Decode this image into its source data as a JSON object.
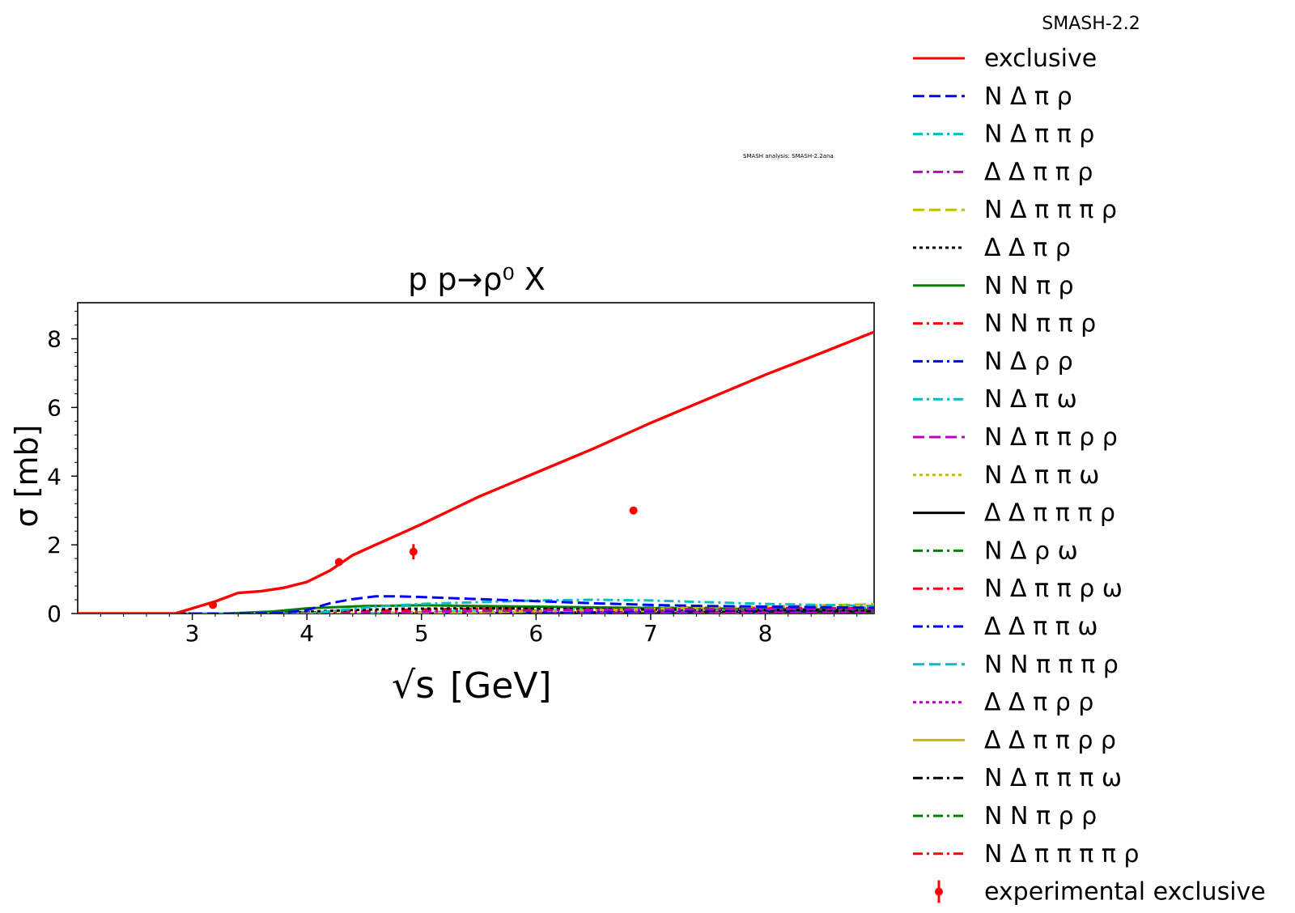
{
  "chart_data": {
    "type": "line",
    "title": "p p→ρ⁰ X",
    "xlabel": "[GeV]",
    "xlabel_symbol": "√s",
    "ylabel": "σ [mb]",
    "xlim": [
      2.0,
      8.95
    ],
    "ylim": [
      0,
      9.05
    ],
    "x_ticks": [
      3,
      4,
      5,
      6,
      7,
      8
    ],
    "y_ticks": [
      0,
      2,
      4,
      6,
      8
    ],
    "watermark": "SMASH analysis: SMASH-2.2ana",
    "legend_title": "SMASH-2.2",
    "legend_placement": "outside-right",
    "series": [
      {
        "name": "exclusive",
        "color": "#ff0000",
        "dash": "solid",
        "x": [
          2.0,
          2.85,
          3.0,
          3.2,
          3.4,
          3.6,
          3.8,
          4.0,
          4.2,
          4.4,
          4.6,
          4.8,
          5.0,
          5.5,
          6.0,
          6.5,
          7.0,
          7.5,
          8.0,
          8.5,
          8.95
        ],
        "y": [
          0,
          0,
          0.15,
          0.35,
          0.6,
          0.65,
          0.75,
          0.92,
          1.25,
          1.7,
          2.0,
          2.3,
          2.6,
          3.4,
          4.1,
          4.8,
          5.55,
          6.25,
          6.95,
          7.6,
          8.2
        ]
      },
      {
        "name": "N Δ π ρ",
        "color": "#0000ff",
        "dash": "longdash",
        "x": [
          2.0,
          3.5,
          3.8,
          4.0,
          4.2,
          4.4,
          4.6,
          4.8,
          5.0,
          5.5,
          6.0,
          6.5,
          7.0,
          7.5,
          8.0,
          8.95
        ],
        "y": [
          0,
          0,
          0.02,
          0.1,
          0.3,
          0.42,
          0.5,
          0.5,
          0.48,
          0.42,
          0.36,
          0.3,
          0.25,
          0.22,
          0.2,
          0.17
        ]
      },
      {
        "name": "N Δ π π ρ",
        "color": "#00bfbf",
        "dash": "dashdot",
        "x": [
          2.0,
          4.0,
          4.3,
          4.6,
          5.0,
          5.5,
          6.0,
          6.5,
          7.0,
          7.5,
          8.0,
          8.95
        ],
        "y": [
          0,
          0,
          0.1,
          0.2,
          0.28,
          0.33,
          0.38,
          0.4,
          0.38,
          0.33,
          0.28,
          0.22
        ]
      },
      {
        "name": "Δ Δ π π ρ",
        "color": "#bf00bf",
        "dash": "dashdot",
        "x": [
          2.0,
          4.3,
          5.0,
          6.0,
          7.0,
          8.0,
          8.95
        ],
        "y": [
          0,
          0,
          0.05,
          0.09,
          0.12,
          0.13,
          0.14
        ]
      },
      {
        "name": "N Δ π π π ρ",
        "color": "#bfbf00",
        "dash": "longdash",
        "x": [
          2.0,
          4.6,
          5.5,
          6.5,
          7.5,
          8.5,
          8.95
        ],
        "y": [
          0,
          0,
          0.04,
          0.1,
          0.17,
          0.24,
          0.27
        ]
      },
      {
        "name": "Δ Δ π ρ",
        "color": "#000000",
        "dash": "dotted",
        "x": [
          2.0,
          3.7,
          4.2,
          4.8,
          5.5,
          6.5,
          7.5,
          8.95
        ],
        "y": [
          0,
          0,
          0.08,
          0.14,
          0.15,
          0.13,
          0.11,
          0.09
        ]
      },
      {
        "name": "N N π ρ",
        "color": "#008000",
        "dash": "solid",
        "x": [
          2.0,
          3.3,
          3.7,
          4.0,
          4.5,
          5.0,
          5.5,
          6.0,
          7.0,
          8.0,
          8.95
        ],
        "y": [
          0,
          0,
          0.06,
          0.15,
          0.22,
          0.24,
          0.22,
          0.2,
          0.16,
          0.13,
          0.11
        ]
      },
      {
        "name": "N N π π ρ",
        "color": "#ff0000",
        "dash": "dashdot",
        "x": [
          2.0,
          3.6,
          4.2,
          5.0,
          6.0,
          7.0,
          8.0,
          8.95
        ],
        "y": [
          0,
          0,
          0.05,
          0.12,
          0.16,
          0.17,
          0.16,
          0.15
        ]
      },
      {
        "name": "N Δ ρ ρ",
        "color": "#0000ff",
        "dash": "dashdot",
        "x": [
          2.0,
          4.5,
          5.5,
          6.5,
          7.5,
          8.95
        ],
        "y": [
          0,
          0,
          0.03,
          0.06,
          0.08,
          0.1
        ]
      },
      {
        "name": "N Δ π ω",
        "color": "#00bfbf",
        "dash": "dashdot",
        "x": [
          2.0,
          4.2,
          5.0,
          6.0,
          7.0,
          8.0,
          8.95
        ],
        "y": [
          0,
          0,
          0.06,
          0.1,
          0.12,
          0.12,
          0.12
        ]
      },
      {
        "name": "N Δ π π ρ ρ",
        "color": "#bf00bf",
        "dash": "longdash",
        "x": [
          2.0,
          5.2,
          6.5,
          7.5,
          8.95
        ],
        "y": [
          0,
          0,
          0.02,
          0.04,
          0.06
        ]
      },
      {
        "name": "N Δ π π ω",
        "color": "#bfbf00",
        "dash": "dotted",
        "x": [
          2.0,
          4.6,
          5.5,
          6.5,
          7.5,
          8.95
        ],
        "y": [
          0,
          0,
          0.03,
          0.06,
          0.08,
          0.1
        ]
      },
      {
        "name": "Δ Δ π π π ρ",
        "color": "#000000",
        "dash": "solid",
        "x": [
          2.0,
          5.0,
          6.0,
          7.0,
          8.0,
          8.95
        ],
        "y": [
          0,
          0,
          0.02,
          0.04,
          0.06,
          0.07
        ]
      },
      {
        "name": "N Δ ρ ω",
        "color": "#008000",
        "dash": "dashdot",
        "x": [
          2.0,
          4.8,
          6.0,
          7.0,
          8.0,
          8.95
        ],
        "y": [
          0,
          0,
          0.02,
          0.04,
          0.05,
          0.06
        ]
      },
      {
        "name": "N Δ π π ρ ω",
        "color": "#ff0000",
        "dash": "dashdot",
        "x": [
          2.0,
          5.3,
          6.5,
          7.5,
          8.95
        ],
        "y": [
          0,
          0,
          0.02,
          0.03,
          0.05
        ]
      },
      {
        "name": "Δ Δ π π ω",
        "color": "#0000ff",
        "dash": "dashdot",
        "x": [
          2.0,
          4.8,
          6.0,
          7.0,
          8.0,
          8.95
        ],
        "y": [
          0,
          0,
          0.03,
          0.05,
          0.06,
          0.07
        ]
      },
      {
        "name": "N N π π π ρ",
        "color": "#00bfbf",
        "dash": "longdash",
        "x": [
          2.0,
          4.4,
          5.2,
          6.2,
          7.2,
          8.2,
          8.95
        ],
        "y": [
          0,
          0,
          0.05,
          0.1,
          0.14,
          0.16,
          0.17
        ]
      },
      {
        "name": "Δ Δ π ρ ρ",
        "color": "#bf00bf",
        "dash": "dotted",
        "x": [
          2.0,
          5.0,
          6.0,
          7.0,
          8.0,
          8.95
        ],
        "y": [
          0,
          0,
          0.02,
          0.04,
          0.05,
          0.06
        ]
      },
      {
        "name": "Δ Δ π π ρ ρ",
        "color": "#bfbf00",
        "dash": "solid",
        "x": [
          2.0,
          5.8,
          7.0,
          8.0,
          8.95
        ],
        "y": [
          0,
          0,
          0.02,
          0.04,
          0.05
        ]
      },
      {
        "name": "N Δ π π π ω",
        "color": "#000000",
        "dash": "dashdot",
        "x": [
          2.0,
          5.5,
          6.5,
          7.5,
          8.95
        ],
        "y": [
          0,
          0,
          0.02,
          0.03,
          0.04
        ]
      },
      {
        "name": "N N π ρ ρ",
        "color": "#008000",
        "dash": "dashdot",
        "x": [
          2.0,
          4.3,
          5.5,
          6.5,
          7.5,
          8.95
        ],
        "y": [
          0,
          0,
          0.02,
          0.04,
          0.05,
          0.06
        ]
      },
      {
        "name": "N Δ π π π π ρ",
        "color": "#ff0000",
        "dash": "dashdot",
        "x": [
          2.0,
          5.8,
          7.0,
          8.0,
          8.95
        ],
        "y": [
          0,
          0,
          0.01,
          0.02,
          0.03
        ]
      }
    ],
    "experimental": {
      "name": "experimental exclusive",
      "color": "#ff0000",
      "points": [
        {
          "x": 3.18,
          "y": 0.25,
          "yerr": 0.05
        },
        {
          "x": 4.28,
          "y": 1.5,
          "yerr": 0.05
        },
        {
          "x": 4.93,
          "y": 1.8,
          "yerr": 0.22
        },
        {
          "x": 6.85,
          "y": 3.0,
          "yerr": 0.05
        }
      ]
    }
  }
}
